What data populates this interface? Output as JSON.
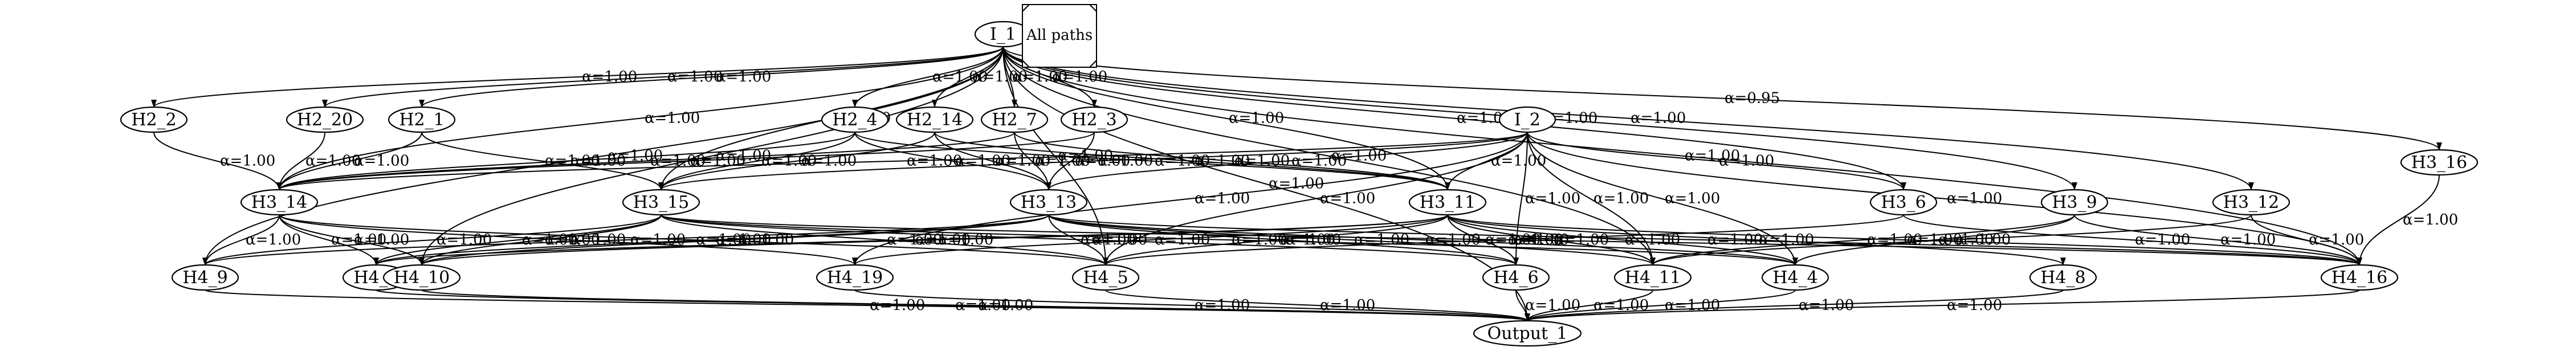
{
  "legend": {
    "title": "All paths"
  },
  "nodes": [
    {
      "id": "I_1",
      "label": "I_1"
    },
    {
      "id": "I_2",
      "label": "I_2"
    },
    {
      "id": "H2_2",
      "label": "H2_2"
    },
    {
      "id": "H2_20",
      "label": "H2_20"
    },
    {
      "id": "H2_1",
      "label": "H2_1"
    },
    {
      "id": "H2_4",
      "label": "H2_4"
    },
    {
      "id": "H2_14",
      "label": "H2_14"
    },
    {
      "id": "H2_7",
      "label": "H2_7"
    },
    {
      "id": "H2_3",
      "label": "H2_3"
    },
    {
      "id": "H3_14",
      "label": "H3_14"
    },
    {
      "id": "H3_15",
      "label": "H3_15"
    },
    {
      "id": "H3_13",
      "label": "H3_13"
    },
    {
      "id": "H3_11",
      "label": "H3_11"
    },
    {
      "id": "H3_6",
      "label": "H3_6"
    },
    {
      "id": "H3_9",
      "label": "H3_9"
    },
    {
      "id": "H3_12",
      "label": "H3_12"
    },
    {
      "id": "H3_16",
      "label": "H3_16"
    },
    {
      "id": "H4_9",
      "label": "H4_9"
    },
    {
      "id": "H4_1",
      "label": "H4_1"
    },
    {
      "id": "H4_10",
      "label": "H4_10"
    },
    {
      "id": "H4_19",
      "label": "H4_19"
    },
    {
      "id": "H4_5",
      "label": "H4_5"
    },
    {
      "id": "H4_6",
      "label": "H4_6"
    },
    {
      "id": "H4_11",
      "label": "H4_11"
    },
    {
      "id": "H4_4",
      "label": "H4_4"
    },
    {
      "id": "H4_8",
      "label": "H4_8"
    },
    {
      "id": "H4_16",
      "label": "H4_16"
    },
    {
      "id": "Output_1",
      "label": "Output_1"
    }
  ],
  "edges": [
    {
      "from": "I_1",
      "to": "H2_2",
      "label": "α=1.00"
    },
    {
      "from": "I_1",
      "to": "H2_20",
      "label": "α=1.00"
    },
    {
      "from": "I_1",
      "to": "H2_1",
      "label": "α=1.00"
    },
    {
      "from": "I_1",
      "to": "H2_4",
      "label": "α=1.00"
    },
    {
      "from": "I_1",
      "to": "H2_14",
      "label": "α=1.00"
    },
    {
      "from": "I_1",
      "to": "H2_7",
      "label": "α=1.00"
    },
    {
      "from": "I_1",
      "to": "H2_3",
      "label": "α=1.00"
    },
    {
      "from": "I_1",
      "to": "H3_14",
      "label": "α=1.00"
    },
    {
      "from": "I_1",
      "to": "H3_15",
      "label": "α=1.00"
    },
    {
      "from": "I_1",
      "to": "H3_11",
      "label": "α=1.00"
    },
    {
      "from": "I_1",
      "to": "H3_6",
      "label": "α=1.00"
    },
    {
      "from": "I_1",
      "to": "H3_9",
      "label": "α=1.00"
    },
    {
      "from": "I_1",
      "to": "H3_12",
      "label": "α=1.00"
    },
    {
      "from": "I_1",
      "to": "H3_16",
      "label": "α=0.95"
    },
    {
      "from": "I_1",
      "to": "H4_9",
      "label": "α=1.00"
    },
    {
      "from": "I_1",
      "to": "H4_10",
      "label": "α=1.00"
    },
    {
      "from": "I_1",
      "to": "H4_5",
      "label": "α=1.00"
    },
    {
      "from": "I_1",
      "to": "H4_11",
      "label": "α=1.00"
    },
    {
      "from": "I_1",
      "to": "H4_16",
      "label": "α=1.00"
    },
    {
      "from": "I_1",
      "to": "Output_1",
      "label": "α=1.00"
    },
    {
      "from": "I_2",
      "to": "H3_14",
      "label": "α=1.00"
    },
    {
      "from": "I_2",
      "to": "H3_15",
      "label": "α=1.00"
    },
    {
      "from": "I_2",
      "to": "H3_13",
      "label": "α=1.00"
    },
    {
      "from": "I_2",
      "to": "H3_11",
      "label": "α=1.00"
    },
    {
      "from": "I_2",
      "to": "H3_6",
      "label": "α=1.00"
    },
    {
      "from": "I_2",
      "to": "H4_5",
      "label": "α=1.00"
    },
    {
      "from": "I_2",
      "to": "H4_6",
      "label": "α=1.00"
    },
    {
      "from": "I_2",
      "to": "H4_11",
      "label": "α=1.00"
    },
    {
      "from": "I_2",
      "to": "H4_4",
      "label": "α=1.00"
    },
    {
      "from": "I_2",
      "to": "H4_16",
      "label": "α=1.00"
    },
    {
      "from": "I_2",
      "to": "H4_19",
      "label": "α=1.00"
    },
    {
      "from": "H2_2",
      "to": "H3_14",
      "label": "α=1.00"
    },
    {
      "from": "H2_20",
      "to": "H3_14",
      "label": "α=1.00"
    },
    {
      "from": "H2_1",
      "to": "H3_14",
      "label": "α=1.00"
    },
    {
      "from": "H2_1",
      "to": "H3_15",
      "label": "α=1.00"
    },
    {
      "from": "H2_4",
      "to": "H3_14",
      "label": "α=1.00"
    },
    {
      "from": "H2_4",
      "to": "H3_15",
      "label": "α=1.00"
    },
    {
      "from": "H2_4",
      "to": "H3_13",
      "label": "α=1.00"
    },
    {
      "from": "H2_4",
      "to": "H3_11",
      "label": "α=1.00"
    },
    {
      "from": "H2_14",
      "to": "H3_15",
      "label": "α=1.00"
    },
    {
      "from": "H2_14",
      "to": "H3_13",
      "label": "α=1.00"
    },
    {
      "from": "H2_14",
      "to": "H3_11",
      "label": "α=1.00"
    },
    {
      "from": "H2_7",
      "to": "H3_14",
      "label": "α=1.00"
    },
    {
      "from": "H2_7",
      "to": "H3_13",
      "label": "α=1.00"
    },
    {
      "from": "H2_7",
      "to": "H3_11",
      "label": "α=1.00"
    },
    {
      "from": "H2_3",
      "to": "H3_13",
      "label": "α=1.00"
    },
    {
      "from": "H2_3",
      "to": "H3_14",
      "label": "α=1.00"
    },
    {
      "from": "H3_14",
      "to": "H4_9",
      "label": "α=1.00"
    },
    {
      "from": "H3_14",
      "to": "H4_1",
      "label": "α=1.00"
    },
    {
      "from": "H3_14",
      "to": "H4_10",
      "label": "α=1.00"
    },
    {
      "from": "H3_14",
      "to": "H4_19",
      "label": "α=1.00"
    },
    {
      "from": "H3_14",
      "to": "H4_5",
      "label": "α=1.00"
    },
    {
      "from": "H3_15",
      "to": "H4_9",
      "label": "α=1.00"
    },
    {
      "from": "H3_15",
      "to": "H4_1",
      "label": "α=1.00"
    },
    {
      "from": "H3_15",
      "to": "H4_10",
      "label": "α=1.00"
    },
    {
      "from": "H3_15",
      "to": "H4_5",
      "label": "α=1.00"
    },
    {
      "from": "H3_15",
      "to": "H4_6",
      "label": "α=1.00"
    },
    {
      "from": "H3_15",
      "to": "H4_4",
      "label": "α=1.00"
    },
    {
      "from": "H3_15",
      "to": "H4_16",
      "label": "α=1.00"
    },
    {
      "from": "H3_13",
      "to": "H4_9",
      "label": "α=1.00"
    },
    {
      "from": "H3_13",
      "to": "H4_1",
      "label": "α=1.00"
    },
    {
      "from": "H3_13",
      "to": "H4_10",
      "label": "α=1.00"
    },
    {
      "from": "H3_13",
      "to": "H4_5",
      "label": "α=1.00"
    },
    {
      "from": "H3_13",
      "to": "H4_6",
      "label": "α=1.00"
    },
    {
      "from": "H3_13",
      "to": "H4_11",
      "label": "α=1.00"
    },
    {
      "from": "H3_13",
      "to": "H4_4",
      "label": "α=1.00"
    },
    {
      "from": "H3_13",
      "to": "H4_16",
      "label": "α=1.00"
    },
    {
      "from": "H3_11",
      "to": "H4_1",
      "label": "α=1.00"
    },
    {
      "from": "H3_11",
      "to": "H4_10",
      "label": "α=1.00"
    },
    {
      "from": "H3_11",
      "to": "H4_19",
      "label": "α=1.00"
    },
    {
      "from": "H3_11",
      "to": "H4_5",
      "label": "α=1.00"
    },
    {
      "from": "H3_11",
      "to": "H4_6",
      "label": "α=1.00"
    },
    {
      "from": "H3_11",
      "to": "H4_11",
      "label": "α=1.00"
    },
    {
      "from": "H3_11",
      "to": "H4_4",
      "label": "α=1.00"
    },
    {
      "from": "H3_11",
      "to": "H4_8",
      "label": "α=1.00"
    },
    {
      "from": "H3_11",
      "to": "H4_16",
      "label": "α=1.00"
    },
    {
      "from": "H3_6",
      "to": "H4_5",
      "label": "α=1.00"
    },
    {
      "from": "H3_6",
      "to": "H4_16",
      "label": "α=1.00"
    },
    {
      "from": "H3_9",
      "to": "H4_11",
      "label": "α=1.00"
    },
    {
      "from": "H3_9",
      "to": "H4_4",
      "label": "α=1.00"
    },
    {
      "from": "H3_9",
      "to": "H4_16",
      "label": "α=1.00"
    },
    {
      "from": "H3_12",
      "to": "H4_11",
      "label": "α=1.00"
    },
    {
      "from": "H3_12",
      "to": "H4_16",
      "label": "α=1.00"
    },
    {
      "from": "H3_16",
      "to": "H4_16",
      "label": "α=1.00"
    },
    {
      "from": "H4_9",
      "to": "Output_1",
      "label": "α=1.00"
    },
    {
      "from": "H4_1",
      "to": "Output_1",
      "label": "α=1.00"
    },
    {
      "from": "H4_10",
      "to": "Output_1",
      "label": "α=1.00"
    },
    {
      "from": "H4_19",
      "to": "Output_1",
      "label": "α=1.00"
    },
    {
      "from": "H4_5",
      "to": "Output_1",
      "label": "α=1.00"
    },
    {
      "from": "H4_6",
      "to": "Output_1",
      "label": "α=1.00"
    },
    {
      "from": "H4_11",
      "to": "Output_1",
      "label": "α=1.00"
    },
    {
      "from": "H4_4",
      "to": "Output_1",
      "label": "α=1.00"
    },
    {
      "from": "H4_8",
      "to": "Output_1",
      "label": "α=1.00"
    },
    {
      "from": "H4_16",
      "to": "Output_1",
      "label": "α=1.00"
    }
  ]
}
